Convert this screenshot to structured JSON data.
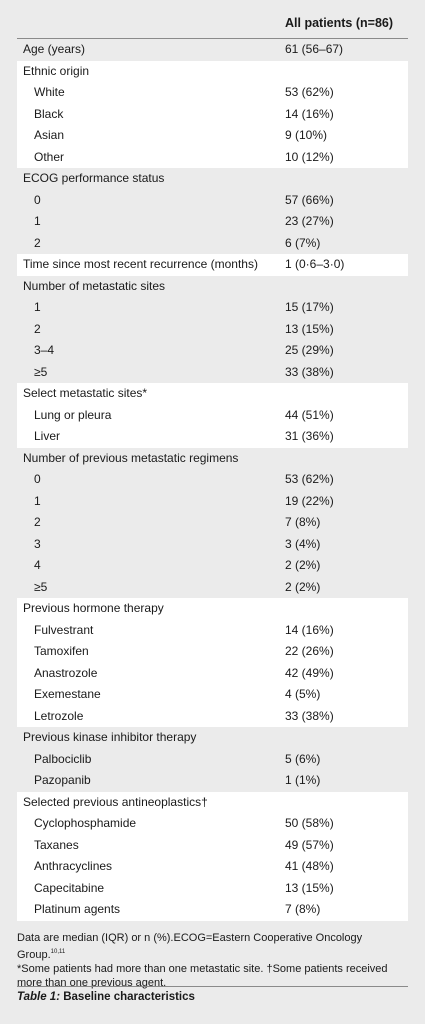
{
  "table": {
    "column_header": "All patients (n=86)",
    "rows": [
      {
        "label": "Age (years)",
        "value": "61 (56–67)",
        "indent": false,
        "shade": "grey"
      },
      {
        "label": "Ethnic origin",
        "value": "",
        "indent": false,
        "shade": "white"
      },
      {
        "label": "White",
        "value": "53 (62%)",
        "indent": true,
        "shade": "white"
      },
      {
        "label": "Black",
        "value": "14 (16%)",
        "indent": true,
        "shade": "white"
      },
      {
        "label": "Asian",
        "value": "9 (10%)",
        "indent": true,
        "shade": "white"
      },
      {
        "label": "Other",
        "value": "10 (12%)",
        "indent": true,
        "shade": "white"
      },
      {
        "label": "ECOG performance status",
        "value": "",
        "indent": false,
        "shade": "grey"
      },
      {
        "label": "0",
        "value": "57 (66%)",
        "indent": true,
        "shade": "grey"
      },
      {
        "label": "1",
        "value": "23 (27%)",
        "indent": true,
        "shade": "grey"
      },
      {
        "label": "2",
        "value": "6 (7%)",
        "indent": true,
        "shade": "grey"
      },
      {
        "label": "Time since most recent recurrence (months)",
        "value": "1 (0·6–3·0)",
        "indent": false,
        "shade": "white"
      },
      {
        "label": "Number of metastatic sites",
        "value": "",
        "indent": false,
        "shade": "grey"
      },
      {
        "label": "1",
        "value": "15 (17%)",
        "indent": true,
        "shade": "grey"
      },
      {
        "label": "2",
        "value": "13 (15%)",
        "indent": true,
        "shade": "grey"
      },
      {
        "label": "3–4",
        "value": "25 (29%)",
        "indent": true,
        "shade": "grey"
      },
      {
        "label": "≥5",
        "value": "33 (38%)",
        "indent": true,
        "shade": "grey"
      },
      {
        "label": "Select metastatic sites*",
        "value": "",
        "indent": false,
        "shade": "white"
      },
      {
        "label": "Lung or pleura",
        "value": "44 (51%)",
        "indent": true,
        "shade": "white"
      },
      {
        "label": "Liver",
        "value": "31 (36%)",
        "indent": true,
        "shade": "white"
      },
      {
        "label": "Number of previous metastatic regimens",
        "value": "",
        "indent": false,
        "shade": "grey"
      },
      {
        "label": "0",
        "value": "53 (62%)",
        "indent": true,
        "shade": "grey"
      },
      {
        "label": "1",
        "value": "19 (22%)",
        "indent": true,
        "shade": "grey"
      },
      {
        "label": "2",
        "value": "7 (8%)",
        "indent": true,
        "shade": "grey"
      },
      {
        "label": "3",
        "value": "3 (4%)",
        "indent": true,
        "shade": "grey"
      },
      {
        "label": "4",
        "value": "2 (2%)",
        "indent": true,
        "shade": "grey"
      },
      {
        "label": "≥5",
        "value": "2 (2%)",
        "indent": true,
        "shade": "grey"
      },
      {
        "label": "Previous hormone therapy",
        "value": "",
        "indent": false,
        "shade": "white"
      },
      {
        "label": "Fulvestrant",
        "value": "14 (16%)",
        "indent": true,
        "shade": "white"
      },
      {
        "label": "Tamoxifen",
        "value": "22 (26%)",
        "indent": true,
        "shade": "white"
      },
      {
        "label": "Anastrozole",
        "value": "42 (49%)",
        "indent": true,
        "shade": "white"
      },
      {
        "label": "Exemestane",
        "value": "4 (5%)",
        "indent": true,
        "shade": "white"
      },
      {
        "label": "Letrozole",
        "value": "33 (38%)",
        "indent": true,
        "shade": "white"
      },
      {
        "label": "Previous kinase inhibitor therapy",
        "value": "",
        "indent": false,
        "shade": "grey"
      },
      {
        "label": "Palbociclib",
        "value": "5 (6%)",
        "indent": true,
        "shade": "grey"
      },
      {
        "label": "Pazopanib",
        "value": "1 (1%)",
        "indent": true,
        "shade": "grey"
      },
      {
        "label": "Selected previous antineoplastics†",
        "value": "",
        "indent": false,
        "shade": "white"
      },
      {
        "label": "Cyclophosphamide",
        "value": "50 (58%)",
        "indent": true,
        "shade": "white"
      },
      {
        "label": "Taxanes",
        "value": "49 (57%)",
        "indent": true,
        "shade": "white"
      },
      {
        "label": "Anthracyclines",
        "value": "41 (48%)",
        "indent": true,
        "shade": "white"
      },
      {
        "label": "Capecitabine",
        "value": "13 (15%)",
        "indent": true,
        "shade": "white"
      },
      {
        "label": "Platinum agents",
        "value": "7 (8%)",
        "indent": true,
        "shade": "white"
      }
    ]
  },
  "footnotes": {
    "line1": "Data are median (IQR) or n (%).ECOG=Eastern Cooperative Oncology Group.",
    "line1_refs": "10,11",
    "line2": "*Some patients had more than one metastatic site. †Some patients received more than one previous agent."
  },
  "caption": {
    "label": "Table 1:",
    "text": "Baseline characteristics"
  },
  "colors": {
    "background": "#ebebeb",
    "band": "#ffffff",
    "rule": "#8a8a8a"
  }
}
